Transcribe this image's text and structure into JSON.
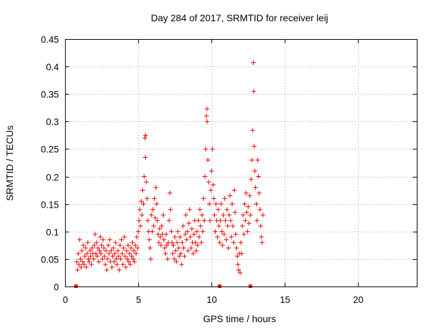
{
  "chart_data": {
    "type": "scatter",
    "title": "Day 284 of 2017, SRMTID for receiver leij",
    "xlabel": "GPS time / hours",
    "ylabel": "SRMTID / TECUs",
    "xlim": [
      0,
      24
    ],
    "ylim": [
      0,
      0.45
    ],
    "xticks": [
      0,
      5,
      10,
      15,
      20
    ],
    "xtick_labels": [
      "0",
      "5",
      "10",
      "15",
      "20"
    ],
    "yticks": [
      0,
      0.05,
      0.1,
      0.15,
      0.2,
      0.25,
      0.3,
      0.35,
      0.4,
      0.45
    ],
    "ytick_labels": [
      "0",
      "0.05",
      "0.1",
      "0.15",
      "0.2",
      "0.25",
      "0.3",
      "0.35",
      "0.4",
      "0.45"
    ],
    "grid": true,
    "marker": "plus",
    "color": "#ee0000",
    "series": [
      {
        "name": "SRMTID",
        "points": [
          [
            0.8,
            0.045
          ],
          [
            0.85,
            0.03
          ],
          [
            0.9,
            0.06
          ],
          [
            0.95,
            0.04
          ],
          [
            1.0,
            0.085
          ],
          [
            1.05,
            0.05
          ],
          [
            1.1,
            0.035
          ],
          [
            1.15,
            0.065
          ],
          [
            1.2,
            0.045
          ],
          [
            1.25,
            0.075
          ],
          [
            1.3,
            0.04
          ],
          [
            1.35,
            0.055
          ],
          [
            1.4,
            0.07
          ],
          [
            1.45,
            0.035
          ],
          [
            1.5,
            0.06
          ],
          [
            1.55,
            0.08
          ],
          [
            1.6,
            0.05
          ],
          [
            1.65,
            0.045
          ],
          [
            1.7,
            0.065
          ],
          [
            1.75,
            0.055
          ],
          [
            1.8,
            0.04
          ],
          [
            1.85,
            0.07
          ],
          [
            1.9,
            0.06
          ],
          [
            1.95,
            0.05
          ],
          [
            2.0,
            0.075
          ],
          [
            2.05,
            0.095
          ],
          [
            2.1,
            0.06
          ],
          [
            2.15,
            0.08
          ],
          [
            2.2,
            0.055
          ],
          [
            2.25,
            0.07
          ],
          [
            2.3,
            0.045
          ],
          [
            2.35,
            0.065
          ],
          [
            2.4,
            0.09
          ],
          [
            2.45,
            0.06
          ],
          [
            2.5,
            0.075
          ],
          [
            2.55,
            0.05
          ],
          [
            2.6,
            0.085
          ],
          [
            2.65,
            0.07
          ],
          [
            2.7,
            0.055
          ],
          [
            2.75,
            0.04
          ],
          [
            2.8,
            0.065
          ],
          [
            2.85,
            0.03
          ],
          [
            2.9,
            0.05
          ],
          [
            2.95,
            0.075
          ],
          [
            3.0,
            0.06
          ],
          [
            3.05,
            0.085
          ],
          [
            3.1,
            0.045
          ],
          [
            3.15,
            0.065
          ],
          [
            3.2,
            0.035
          ],
          [
            3.25,
            0.055
          ],
          [
            3.3,
            0.07
          ],
          [
            3.35,
            0.045
          ],
          [
            3.4,
            0.06
          ],
          [
            3.45,
            0.08
          ],
          [
            3.5,
            0.05
          ],
          [
            3.55,
            0.04
          ],
          [
            3.6,
            0.065
          ],
          [
            3.65,
            0.055
          ],
          [
            3.7,
            0.03
          ],
          [
            3.75,
            0.075
          ],
          [
            3.8,
            0.05
          ],
          [
            3.85,
            0.085
          ],
          [
            3.9,
            0.06
          ],
          [
            3.95,
            0.04
          ],
          [
            4.0,
            0.07
          ],
          [
            4.05,
            0.09
          ],
          [
            4.1,
            0.055
          ],
          [
            4.15,
            0.035
          ],
          [
            4.2,
            0.065
          ],
          [
            4.25,
            0.05
          ],
          [
            4.3,
            0.075
          ],
          [
            4.35,
            0.045
          ],
          [
            4.4,
            0.06
          ],
          [
            4.45,
            0.04
          ],
          [
            4.5,
            0.07
          ],
          [
            4.55,
            0.055
          ],
          [
            4.6,
            0.08
          ],
          [
            4.65,
            0.05
          ],
          [
            4.7,
            0.065
          ],
          [
            4.75,
            0.045
          ],
          [
            4.8,
            0.075
          ],
          [
            4.85,
            0.06
          ],
          [
            4.9,
            0.09
          ],
          [
            4.95,
            0.07
          ],
          [
            5.0,
            0.1
          ],
          [
            5.05,
            0.12
          ],
          [
            5.1,
            0.14
          ],
          [
            5.15,
            0.11
          ],
          [
            5.2,
            0.155
          ],
          [
            5.25,
            0.13
          ],
          [
            5.3,
            0.175
          ],
          [
            5.35,
            0.15
          ],
          [
            5.4,
            0.2
          ],
          [
            5.45,
            0.27
          ],
          [
            5.48,
            0.235
          ],
          [
            5.5,
            0.275
          ],
          [
            5.55,
            0.19
          ],
          [
            5.6,
            0.16
          ],
          [
            5.65,
            0.12
          ],
          [
            5.7,
            0.1
          ],
          [
            5.75,
            0.085
          ],
          [
            5.8,
            0.07
          ],
          [
            5.85,
            0.05
          ],
          [
            5.9,
            0.13
          ],
          [
            5.95,
            0.1
          ],
          [
            6.0,
            0.14
          ],
          [
            6.05,
            0.11
          ],
          [
            6.1,
            0.16
          ],
          [
            6.15,
            0.125
          ],
          [
            6.2,
            0.18
          ],
          [
            6.25,
            0.15
          ],
          [
            6.3,
            0.12
          ],
          [
            6.35,
            0.095
          ],
          [
            6.4,
            0.08
          ],
          [
            6.45,
            0.105
          ],
          [
            6.5,
            0.09
          ],
          [
            6.55,
            0.075
          ],
          [
            6.6,
            0.11
          ],
          [
            6.65,
            0.095
          ],
          [
            6.7,
            0.13
          ],
          [
            6.75,
            0.085
          ],
          [
            6.8,
            0.07
          ],
          [
            6.85,
            0.06
          ],
          [
            6.9,
            0.095
          ],
          [
            6.95,
            0.075
          ],
          [
            7.0,
            0.05
          ],
          [
            7.05,
            0.08
          ],
          [
            7.1,
            0.12
          ],
          [
            7.15,
            0.17
          ],
          [
            7.2,
            0.14
          ],
          [
            7.25,
            0.1
          ],
          [
            7.3,
            0.08
          ],
          [
            7.35,
            0.06
          ],
          [
            7.4,
            0.075
          ],
          [
            7.45,
            0.05
          ],
          [
            7.5,
            0.09
          ],
          [
            7.55,
            0.065
          ],
          [
            7.6,
            0.045
          ],
          [
            7.65,
            0.08
          ],
          [
            7.7,
            0.1
          ],
          [
            7.75,
            0.07
          ],
          [
            7.8,
            0.055
          ],
          [
            7.85,
            0.09
          ],
          [
            7.9,
            0.06
          ],
          [
            7.95,
            0.04
          ],
          [
            8.0,
            0.08
          ],
          [
            8.05,
            0.11
          ],
          [
            8.1,
            0.07
          ],
          [
            8.15,
            0.055
          ],
          [
            8.2,
            0.095
          ],
          [
            8.25,
            0.13
          ],
          [
            8.3,
            0.085
          ],
          [
            8.35,
            0.1
          ],
          [
            8.4,
            0.065
          ],
          [
            8.45,
            0.115
          ],
          [
            8.5,
            0.14
          ],
          [
            8.55,
            0.09
          ],
          [
            8.6,
            0.07
          ],
          [
            8.65,
            0.105
          ],
          [
            8.7,
            0.08
          ],
          [
            8.75,
            0.06
          ],
          [
            8.8,
            0.095
          ],
          [
            8.85,
            0.12
          ],
          [
            8.9,
            0.08
          ],
          [
            8.95,
            0.065
          ],
          [
            9.0,
            0.1
          ],
          [
            9.05,
            0.075
          ],
          [
            9.1,
            0.12
          ],
          [
            9.15,
            0.09
          ],
          [
            9.2,
            0.14
          ],
          [
            9.25,
            0.11
          ],
          [
            9.3,
            0.08
          ],
          [
            9.35,
            0.13
          ],
          [
            9.4,
            0.1
          ],
          [
            9.45,
            0.16
          ],
          [
            9.5,
            0.12
          ],
          [
            9.55,
            0.2
          ],
          [
            9.6,
            0.25
          ],
          [
            9.65,
            0.31
          ],
          [
            9.68,
            0.323
          ],
          [
            9.7,
            0.3
          ],
          [
            9.75,
            0.23
          ],
          [
            9.8,
            0.19
          ],
          [
            9.85,
            0.15
          ],
          [
            9.9,
            0.12
          ],
          [
            9.95,
            0.175
          ],
          [
            10.0,
            0.21
          ],
          [
            10.05,
            0.25
          ],
          [
            10.1,
            0.185
          ],
          [
            10.15,
            0.16
          ],
          [
            10.2,
            0.13
          ],
          [
            10.25,
            0.1
          ],
          [
            10.3,
            0.15
          ],
          [
            10.35,
            0.12
          ],
          [
            10.4,
            0.09
          ],
          [
            10.45,
            0.14
          ],
          [
            10.5,
            0.11
          ],
          [
            10.55,
            0.08
          ],
          [
            10.6,
            0.12
          ],
          [
            10.65,
            0.15
          ],
          [
            10.7,
            0.1
          ],
          [
            10.75,
            0.075
          ],
          [
            10.8,
            0.13
          ],
          [
            10.85,
            0.095
          ],
          [
            10.9,
            0.16
          ],
          [
            10.95,
            0.12
          ],
          [
            11.0,
            0.085
          ],
          [
            11.05,
            0.14
          ],
          [
            11.1,
            0.11
          ],
          [
            11.15,
            0.07
          ],
          [
            11.2,
            0.13
          ],
          [
            11.25,
            0.165
          ],
          [
            11.3,
            0.12
          ],
          [
            11.35,
            0.09
          ],
          [
            11.4,
            0.15
          ],
          [
            11.45,
            0.11
          ],
          [
            11.5,
            0.08
          ],
          [
            11.55,
            0.175
          ],
          [
            11.6,
            0.135
          ],
          [
            11.65,
            0.095
          ],
          [
            11.7,
            0.07
          ],
          [
            11.75,
            0.055
          ],
          [
            11.8,
            0.04
          ],
          [
            11.85,
            0.03
          ],
          [
            11.9,
            0.06
          ],
          [
            11.95,
            0.025
          ],
          [
            12.0,
            0.08
          ],
          [
            12.05,
            0.06
          ],
          [
            12.1,
            0.11
          ],
          [
            12.15,
            0.13
          ],
          [
            12.2,
            0.095
          ],
          [
            12.25,
            0.15
          ],
          [
            12.3,
            0.12
          ],
          [
            12.35,
            0.17
          ],
          [
            12.4,
            0.135
          ],
          [
            12.45,
            0.1
          ],
          [
            12.5,
            0.145
          ],
          [
            12.55,
            0.115
          ],
          [
            12.6,
            0.165
          ],
          [
            12.65,
            0.13
          ],
          [
            12.7,
            0.195
          ],
          [
            12.75,
            0.23
          ],
          [
            12.8,
            0.284
          ],
          [
            12.85,
            0.407
          ],
          [
            12.88,
            0.355
          ],
          [
            12.9,
            0.255
          ],
          [
            12.95,
            0.21
          ],
          [
            13.0,
            0.18
          ],
          [
            13.05,
            0.15
          ],
          [
            13.1,
            0.12
          ],
          [
            13.15,
            0.23
          ],
          [
            13.2,
            0.2
          ],
          [
            13.25,
            0.17
          ],
          [
            13.3,
            0.14
          ],
          [
            13.35,
            0.11
          ],
          [
            13.4,
            0.09
          ],
          [
            13.45,
            0.08
          ],
          [
            13.5,
            0.13
          ]
        ]
      }
    ],
    "zero_markers": [
      {
        "x": 0.75,
        "y": 0
      },
      {
        "x": 10.55,
        "y": 0
      },
      {
        "x": 12.65,
        "y": 0
      }
    ]
  }
}
